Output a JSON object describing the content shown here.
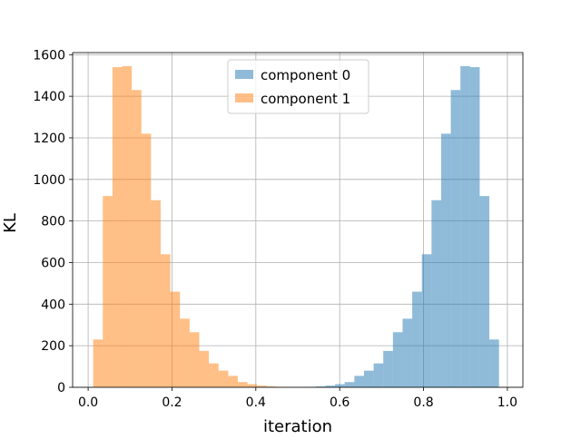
{
  "chart_data": {
    "type": "bar",
    "title": "",
    "xlabel": "iteration",
    "ylabel": "KL",
    "xlim": [
      -0.037,
      1.037
    ],
    "ylim": [
      0,
      1610
    ],
    "xticks": [
      0.0,
      0.2,
      0.4,
      0.6,
      0.8,
      1.0
    ],
    "xtick_labels": [
      "0.0",
      "0.2",
      "0.4",
      "0.6",
      "0.8",
      "1.0"
    ],
    "yticks": [
      0,
      200,
      400,
      600,
      800,
      1000,
      1200,
      1400,
      1600
    ],
    "ytick_labels": [
      "0",
      "200",
      "400",
      "600",
      "800",
      "1000",
      "1200",
      "1400",
      "1600"
    ],
    "grid": true,
    "legend_position": "upper center",
    "series": [
      {
        "name": "component 0",
        "color": "#1f77b4",
        "opacity": 0.5,
        "bins": [
          [
            0.52,
            0.543,
            2
          ],
          [
            0.543,
            0.566,
            4
          ],
          [
            0.566,
            0.589,
            8
          ],
          [
            0.589,
            0.612,
            15
          ],
          [
            0.612,
            0.635,
            25
          ],
          [
            0.635,
            0.658,
            55
          ],
          [
            0.658,
            0.681,
            80
          ],
          [
            0.681,
            0.704,
            115
          ],
          [
            0.704,
            0.727,
            175
          ],
          [
            0.727,
            0.75,
            265
          ],
          [
            0.75,
            0.773,
            330
          ],
          [
            0.773,
            0.796,
            460
          ],
          [
            0.796,
            0.819,
            640
          ],
          [
            0.819,
            0.842,
            900
          ],
          [
            0.842,
            0.865,
            1220
          ],
          [
            0.865,
            0.888,
            1430
          ],
          [
            0.888,
            0.911,
            1545
          ],
          [
            0.911,
            0.934,
            1540
          ],
          [
            0.934,
            0.957,
            920
          ],
          [
            0.957,
            0.98,
            230
          ]
        ]
      },
      {
        "name": "component 1",
        "color": "#ff7f0e",
        "opacity": 0.5,
        "bins": [
          [
            0.012,
            0.035,
            230
          ],
          [
            0.035,
            0.058,
            920
          ],
          [
            0.058,
            0.081,
            1540
          ],
          [
            0.081,
            0.104,
            1545
          ],
          [
            0.104,
            0.127,
            1430
          ],
          [
            0.127,
            0.15,
            1220
          ],
          [
            0.15,
            0.173,
            900
          ],
          [
            0.173,
            0.196,
            640
          ],
          [
            0.196,
            0.219,
            460
          ],
          [
            0.219,
            0.242,
            330
          ],
          [
            0.242,
            0.265,
            265
          ],
          [
            0.265,
            0.288,
            175
          ],
          [
            0.288,
            0.311,
            115
          ],
          [
            0.311,
            0.334,
            80
          ],
          [
            0.334,
            0.357,
            55
          ],
          [
            0.357,
            0.38,
            25
          ],
          [
            0.38,
            0.403,
            15
          ],
          [
            0.403,
            0.426,
            8
          ],
          [
            0.426,
            0.449,
            4
          ],
          [
            0.449,
            0.472,
            2
          ]
        ]
      }
    ]
  }
}
